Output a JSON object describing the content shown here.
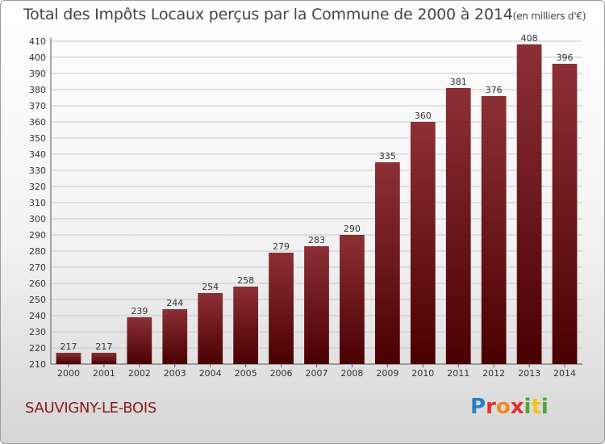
{
  "chart_data": {
    "type": "bar",
    "title": "Total des Impôts Locaux perçus par la Commune de 2000 à 2014",
    "unit_label": "(en milliers d'€)",
    "categories": [
      "2000",
      "2001",
      "2002",
      "2003",
      "2004",
      "2005",
      "2006",
      "2007",
      "2008",
      "2009",
      "2010",
      "2011",
      "2012",
      "2013",
      "2014"
    ],
    "values": [
      217,
      217,
      239,
      244,
      254,
      258,
      279,
      283,
      290,
      335,
      360,
      381,
      376,
      408,
      396
    ],
    "ylim": [
      210,
      410
    ],
    "ytick_step": 10,
    "grid": true,
    "xlabel": "",
    "ylabel": "",
    "colors": {
      "bar_top": "#8c3036",
      "bar_bottom": "#4a0000",
      "grid": "#c8c8c8"
    }
  },
  "footer": {
    "commune": "SAUVIGNY-LE-BOIS",
    "logo_letters": [
      "P",
      "r",
      "o",
      "x",
      "i",
      "t",
      "i"
    ]
  }
}
